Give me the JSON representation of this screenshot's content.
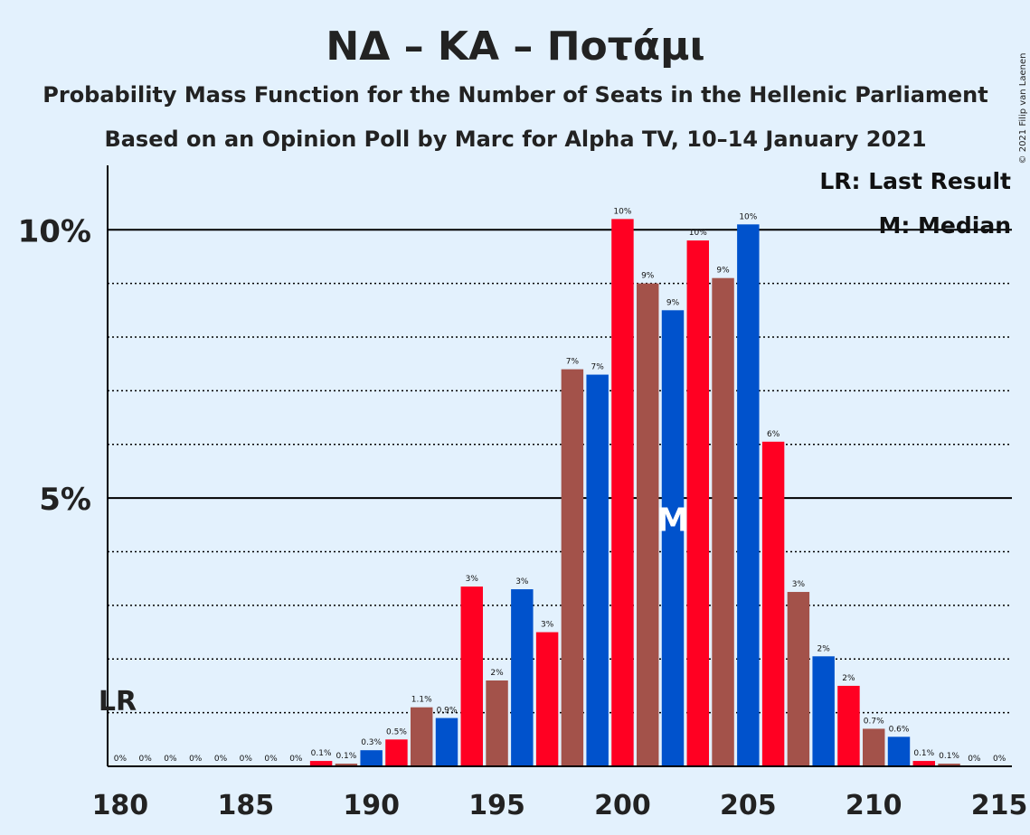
{
  "chart_data": {
    "type": "bar",
    "title": "ΝΔ – ΚΑ – Ποτάμι",
    "subtitle": "Probability Mass Function for the Number of Seats in the Hellenic Parliament",
    "subtitle2": "Based on an Opinion Poll by Marc for Alpha TV, 10–14 January 2021",
    "copyright": "© 2021 Filip van Laenen",
    "legend": {
      "lr": "LR: Last Result",
      "median": "M: Median",
      "placement": "top-right"
    },
    "x": [
      180,
      181,
      182,
      183,
      184,
      185,
      186,
      187,
      188,
      189,
      190,
      191,
      192,
      193,
      194,
      195,
      196,
      197,
      198,
      199,
      200,
      201,
      202,
      203,
      204,
      205,
      206,
      207,
      208,
      209,
      210,
      211,
      212,
      213,
      214,
      215
    ],
    "values": [
      0,
      0,
      0,
      0,
      0,
      0,
      0,
      0,
      0.1,
      0.05,
      0.3,
      0.5,
      1.1,
      0.9,
      3.35,
      1.6,
      3.3,
      2.5,
      7.4,
      7.3,
      10.2,
      9.0,
      8.5,
      9.8,
      9.1,
      10.1,
      6.05,
      3.25,
      2.05,
      1.5,
      0.7,
      0.55,
      0.1,
      0.05,
      0,
      0
    ],
    "labels": [
      "0%",
      "0%",
      "0%",
      "0%",
      "0%",
      "0%",
      "0%",
      "0%",
      "0.1%",
      "0.1%",
      "0.3%",
      "0.5%",
      "1.1%",
      "0.9%",
      "3%",
      "2%",
      "3%",
      "3%",
      "7%",
      "7%",
      "10%",
      "9%",
      "9%",
      "10%",
      "9%",
      "10%",
      "6%",
      "3%",
      "2%",
      "2%",
      "0.7%",
      "0.6%",
      "0.1%",
      "0.1%",
      "0%",
      "0%"
    ],
    "xticks": [
      "180",
      "185",
      "190",
      "195",
      "200",
      "205",
      "210",
      "215"
    ],
    "yticks": [
      "5%",
      "10%"
    ],
    "ylim": [
      0,
      11.2
    ],
    "xlim": [
      180,
      215
    ],
    "grid": true,
    "last_result_seat": 180,
    "last_result_label": "LR",
    "median_seat": 202,
    "median_label": "M",
    "colors": {
      "blue": "#0052cc",
      "red": "#ff0022",
      "brown": "#a3524a",
      "background": "#e3f1fd",
      "median_marker": "#ffffff"
    },
    "color_cycle": [
      "brown",
      "blue",
      "red"
    ]
  }
}
